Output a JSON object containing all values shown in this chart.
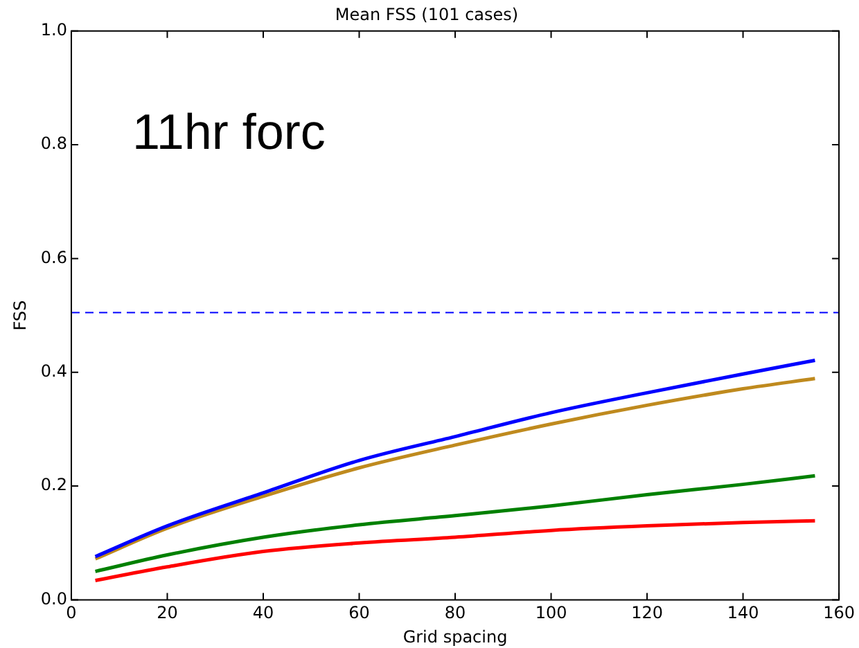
{
  "chart_data": {
    "type": "line",
    "title": "Mean FSS (101 cases)",
    "xlabel": "Grid spacing",
    "ylabel": "FSS",
    "annotations": [
      "11hr forc"
    ],
    "x": [
      5,
      20,
      40,
      60,
      80,
      100,
      120,
      140,
      155
    ],
    "series": [
      {
        "color": "#0000ff",
        "values": [
          0.076,
          0.13,
          0.188,
          0.245,
          0.287,
          0.329,
          0.364,
          0.397,
          0.421
        ]
      },
      {
        "color": "#bf8a1e",
        "values": [
          0.072,
          0.126,
          0.182,
          0.232,
          0.272,
          0.309,
          0.342,
          0.371,
          0.389
        ]
      },
      {
        "color": "#008000",
        "values": [
          0.05,
          0.079,
          0.11,
          0.132,
          0.148,
          0.165,
          0.185,
          0.203,
          0.218
        ]
      },
      {
        "color": "#ff0000",
        "values": [
          0.034,
          0.058,
          0.085,
          0.1,
          0.11,
          0.122,
          0.13,
          0.136,
          0.139
        ]
      }
    ],
    "ref_lines": [
      {
        "axis": "y",
        "value": 0.505,
        "color": "#0000ff",
        "line_style": "dashed"
      }
    ],
    "xlim": [
      0,
      160
    ],
    "xticks": [
      0,
      20,
      40,
      60,
      80,
      100,
      120,
      140,
      160
    ],
    "ylim": [
      0,
      1
    ],
    "yticks": [
      {
        "value": 0,
        "label": "0.0"
      },
      {
        "value": 0.2,
        "label": "0.2"
      },
      {
        "value": 0.4,
        "label": "0.4"
      },
      {
        "value": 0.6,
        "label": "0.6"
      },
      {
        "value": 0.8,
        "label": "0.8"
      },
      {
        "value": 1,
        "label": "1.0"
      }
    ],
    "grid": false,
    "legend": false,
    "marker": "none",
    "line_style": "solid"
  }
}
